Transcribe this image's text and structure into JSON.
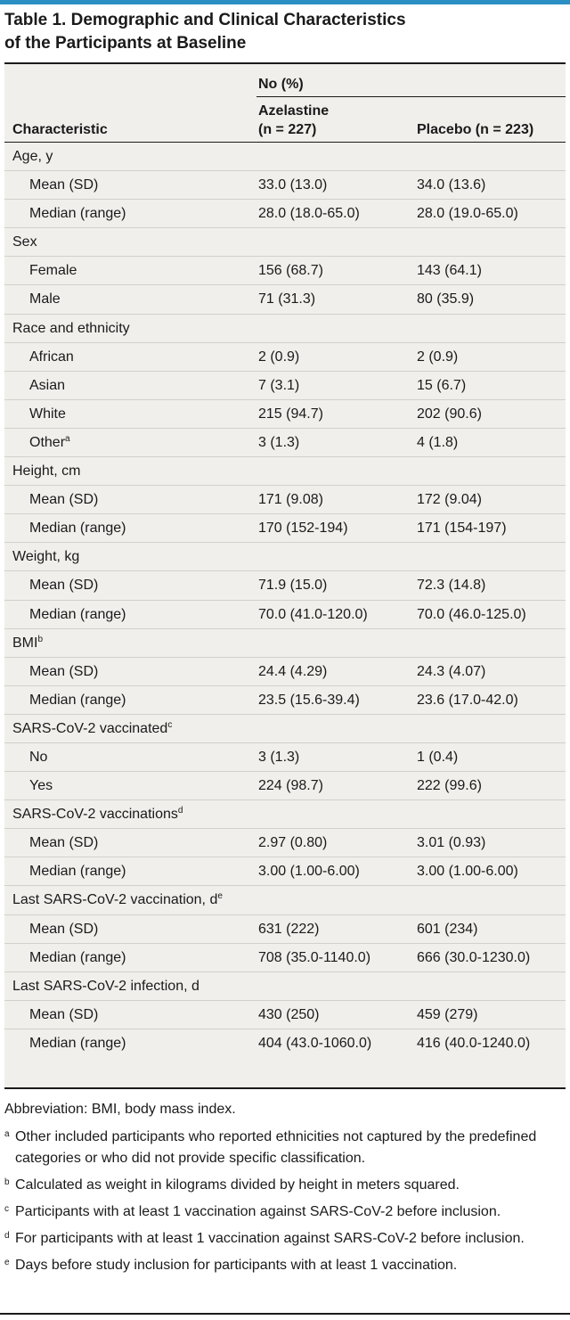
{
  "title": {
    "line1": "Table 1. Demographic and Clinical Characteristics",
    "line2": "of the Participants at Baseline"
  },
  "header": {
    "group": "No (%)",
    "characteristic": "Characteristic",
    "azelastine_line1": "Azelastine",
    "azelastine_line2": "(n = 227)",
    "placebo": "Placebo (n = 223)"
  },
  "rows": [
    {
      "label": "Age, y",
      "sup": "",
      "azelastine": "",
      "placebo": "",
      "sub": false
    },
    {
      "label": "Mean (SD)",
      "sup": "",
      "azelastine": "33.0 (13.0)",
      "placebo": "34.0 (13.6)",
      "sub": true
    },
    {
      "label": "Median (range)",
      "sup": "",
      "azelastine": "28.0 (18.0-65.0)",
      "placebo": "28.0 (19.0-65.0)",
      "sub": true
    },
    {
      "label": "Sex",
      "sup": "",
      "azelastine": "",
      "placebo": "",
      "sub": false
    },
    {
      "label": "Female",
      "sup": "",
      "azelastine": "156 (68.7)",
      "placebo": "143 (64.1)",
      "sub": true
    },
    {
      "label": "Male",
      "sup": "",
      "azelastine": "71 (31.3)",
      "placebo": "80 (35.9)",
      "sub": true
    },
    {
      "label": "Race and ethnicity",
      "sup": "",
      "azelastine": "",
      "placebo": "",
      "sub": false
    },
    {
      "label": "African",
      "sup": "",
      "azelastine": "2 (0.9)",
      "placebo": "2 (0.9)",
      "sub": true
    },
    {
      "label": "Asian",
      "sup": "",
      "azelastine": "7 (3.1)",
      "placebo": "15 (6.7)",
      "sub": true
    },
    {
      "label": "White",
      "sup": "",
      "azelastine": "215 (94.7)",
      "placebo": "202 (90.6)",
      "sub": true
    },
    {
      "label": "Other",
      "sup": "a",
      "azelastine": "3 (1.3)",
      "placebo": "4 (1.8)",
      "sub": true
    },
    {
      "label": "Height, cm",
      "sup": "",
      "azelastine": "",
      "placebo": "",
      "sub": false
    },
    {
      "label": "Mean (SD)",
      "sup": "",
      "azelastine": "171 (9.08)",
      "placebo": "172 (9.04)",
      "sub": true
    },
    {
      "label": "Median (range)",
      "sup": "",
      "azelastine": "170 (152-194)",
      "placebo": "171 (154-197)",
      "sub": true
    },
    {
      "label": "Weight, kg",
      "sup": "",
      "azelastine": "",
      "placebo": "",
      "sub": false
    },
    {
      "label": "Mean (SD)",
      "sup": "",
      "azelastine": "71.9 (15.0)",
      "placebo": "72.3 (14.8)",
      "sub": true
    },
    {
      "label": "Median (range)",
      "sup": "",
      "azelastine": "70.0 (41.0-120.0)",
      "placebo": "70.0 (46.0-125.0)",
      "sub": true
    },
    {
      "label": "BMI",
      "sup": "b",
      "azelastine": "",
      "placebo": "",
      "sub": false
    },
    {
      "label": "Mean (SD)",
      "sup": "",
      "azelastine": "24.4 (4.29)",
      "placebo": "24.3 (4.07)",
      "sub": true
    },
    {
      "label": "Median (range)",
      "sup": "",
      "azelastine": "23.5 (15.6-39.4)",
      "placebo": "23.6 (17.0-42.0)",
      "sub": true
    },
    {
      "label": "SARS-CoV-2 vaccinated",
      "sup": "c",
      "azelastine": "",
      "placebo": "",
      "sub": false
    },
    {
      "label": "No",
      "sup": "",
      "azelastine": "3 (1.3)",
      "placebo": "1 (0.4)",
      "sub": true
    },
    {
      "label": "Yes",
      "sup": "",
      "azelastine": "224 (98.7)",
      "placebo": "222 (99.6)",
      "sub": true
    },
    {
      "label": "SARS-CoV-2 vaccinations",
      "sup": "d",
      "azelastine": "",
      "placebo": "",
      "sub": false
    },
    {
      "label": "Mean (SD)",
      "sup": "",
      "azelastine": "2.97 (0.80)",
      "placebo": "3.01 (0.93)",
      "sub": true
    },
    {
      "label": "Median (range)",
      "sup": "",
      "azelastine": "3.00 (1.00-6.00)",
      "placebo": "3.00 (1.00-6.00)",
      "sub": true
    },
    {
      "label": "Last SARS-CoV-2 vaccination, d",
      "sup": "e",
      "azelastine": "",
      "placebo": "",
      "sub": false
    },
    {
      "label": "Mean (SD)",
      "sup": "",
      "azelastine": "631 (222)",
      "placebo": "601 (234)",
      "sub": true
    },
    {
      "label": "Median (range)",
      "sup": "",
      "azelastine": "708 (35.0-1140.0)",
      "placebo": "666 (30.0-1230.0)",
      "sub": true
    },
    {
      "label": "Last SARS-CoV-2 infection, d",
      "sup": "",
      "azelastine": "",
      "placebo": "",
      "sub": false
    },
    {
      "label": "Mean (SD)",
      "sup": "",
      "azelastine": "430 (250)",
      "placebo": "459 (279)",
      "sub": true
    },
    {
      "label": "Median (range)",
      "sup": "",
      "azelastine": "404 (43.0-1060.0)",
      "placebo": "416 (40.0-1240.0)",
      "sub": true
    }
  ],
  "footnotes": {
    "abbreviation": "Abbreviation: BMI, body mass index.",
    "notes": [
      {
        "mark": "a",
        "text": "Other included participants who reported ethnicities not captured by the predefined categories or who did not provide specific classification."
      },
      {
        "mark": "b",
        "text": "Calculated as weight in kilograms divided by height in meters squared."
      },
      {
        "mark": "c",
        "text": "Participants with at least 1 vaccination against SARS-CoV-2 before inclusion."
      },
      {
        "mark": "d",
        "text": "For participants with at least 1 vaccination against SARS-CoV-2 before inclusion."
      },
      {
        "mark": "e",
        "text": "Days before study inclusion for participants with at least 1 vaccination."
      }
    ]
  },
  "colors": {
    "accent_bar": "#2b8fc3",
    "table_background": "#f1efec"
  }
}
